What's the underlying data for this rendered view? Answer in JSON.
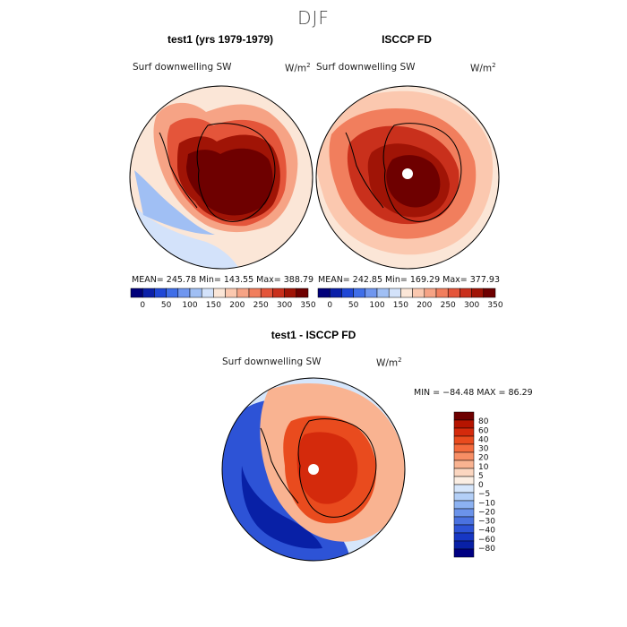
{
  "chart_data": {
    "type": "heatmap",
    "season": "DJF",
    "panels": [
      {
        "title": "test1 (yrs 1979-1979)",
        "variable": "Surf downwelling SW",
        "units_base": "W/m",
        "units_exp": "2",
        "stats_text": "MEAN= 245.78   Min= 143.55   Max= 388.79",
        "mean": 245.78,
        "min": 143.55,
        "max": 388.79
      },
      {
        "title": "ISCCP FD",
        "variable": "Surf downwelling SW",
        "units_base": "W/m",
        "units_exp": "2",
        "stats_text": "MEAN= 242.85   Min= 169.29   Max= 377.93",
        "mean": 242.85,
        "min": 169.29,
        "max": 377.93
      },
      {
        "title": "test1 - ISCCP FD",
        "variable": "Surf downwelling SW",
        "units_base": "W/m",
        "units_exp": "2",
        "stats_text": "MIN = −84.48 MAX =  86.29",
        "min": -84.48,
        "max": 86.29
      }
    ],
    "abs_colorbar": {
      "colors": [
        "#00007a",
        "#0a1fa8",
        "#1f47d6",
        "#3f6ee8",
        "#6f96ef",
        "#a0bff4",
        "#d3e2fa",
        "#fbe6d7",
        "#fbc8af",
        "#f6a385",
        "#f17e5d",
        "#e4553a",
        "#c9301c",
        "#a01406",
        "#6e0000"
      ],
      "tick_labels": [
        "0",
        "50",
        "100",
        "150",
        "200",
        "250",
        "300",
        "350"
      ]
    },
    "diff_colorbar": {
      "levels": [
        -80,
        -60,
        -40,
        -30,
        -20,
        -10,
        -5,
        0,
        5,
        10,
        20,
        30,
        40,
        60,
        80
      ],
      "colors": [
        "#6e0000",
        "#b51400",
        "#d42a0c",
        "#e94b1e",
        "#f46b3d",
        "#f78e65",
        "#f9b391",
        "#fbd6c0",
        "#fbeee3",
        "#d6e6fb",
        "#b3cff7",
        "#8cb2f2",
        "#6b93ea",
        "#4a72e0",
        "#2d53d6",
        "#1737c4",
        "#0820a6",
        "#000082"
      ],
      "tick_labels": [
        "80",
        "60",
        "40",
        "30",
        "20",
        "10",
        "5",
        "0",
        "−5",
        "−10",
        "−20",
        "−30",
        "−40",
        "−60",
        "−80"
      ]
    }
  }
}
